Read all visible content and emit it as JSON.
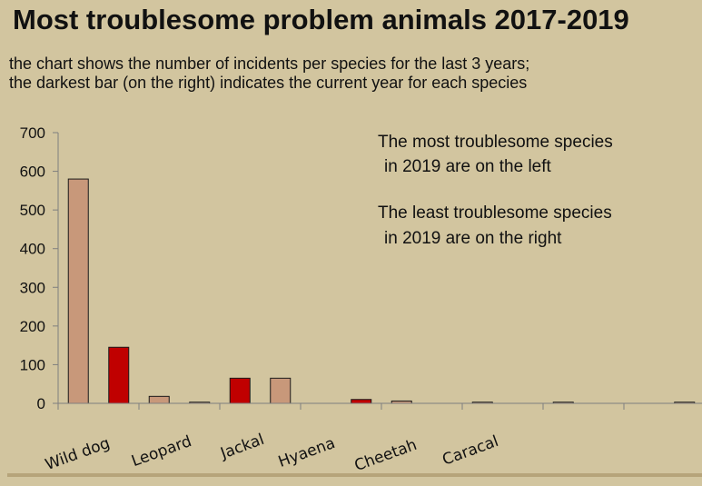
{
  "header": {
    "title": "Most troublesome problem animals 2017-2019",
    "subtitle_line1": "the chart shows the number of incidents per species for the last 3 years;",
    "subtitle_line2": "the darkest bar (on the right) indicates the current year for each species"
  },
  "annotations": {
    "note1_line1": "The most troublesome species",
    "note1_line2": "in 2019 are on the left",
    "note2_line1": "The least troublesome species",
    "note2_line2": "in 2019 are on the right"
  },
  "colors": {
    "background": "#d2c59f",
    "previous_years_bar": "#c8987a",
    "current_year_bar": "#c00000",
    "bar_outline": "#1a1a1a",
    "axis": "#7f7f7f"
  },
  "chart_data": {
    "type": "bar",
    "title": "Most troublesome problem animals 2017-2019",
    "ylim": [
      0,
      700
    ],
    "yticks": [
      0,
      100,
      200,
      300,
      400,
      500,
      600,
      700
    ],
    "category_labels": [
      "Wild dog",
      "Leopard",
      "Jackal",
      "Hyaena",
      "Cheetah",
      "Caracal"
    ],
    "bars": [
      {
        "value": 580,
        "current_year": false
      },
      {
        "value": 145,
        "current_year": true
      },
      {
        "value": 18,
        "current_year": false
      },
      {
        "value": 3,
        "current_year": false
      },
      {
        "value": 65,
        "current_year": true
      },
      {
        "value": 65,
        "current_year": false
      },
      {
        "value": 0,
        "current_year": false
      },
      {
        "value": 10,
        "current_year": true
      },
      {
        "value": 6,
        "current_year": false
      },
      {
        "value": 0,
        "current_year": false
      },
      {
        "value": 3,
        "current_year": false
      },
      {
        "value": 0,
        "current_year": false
      },
      {
        "value": 3,
        "current_year": false
      },
      {
        "value": 0,
        "current_year": false
      },
      {
        "value": 0,
        "current_year": false
      },
      {
        "value": 3,
        "current_year": false
      }
    ]
  }
}
